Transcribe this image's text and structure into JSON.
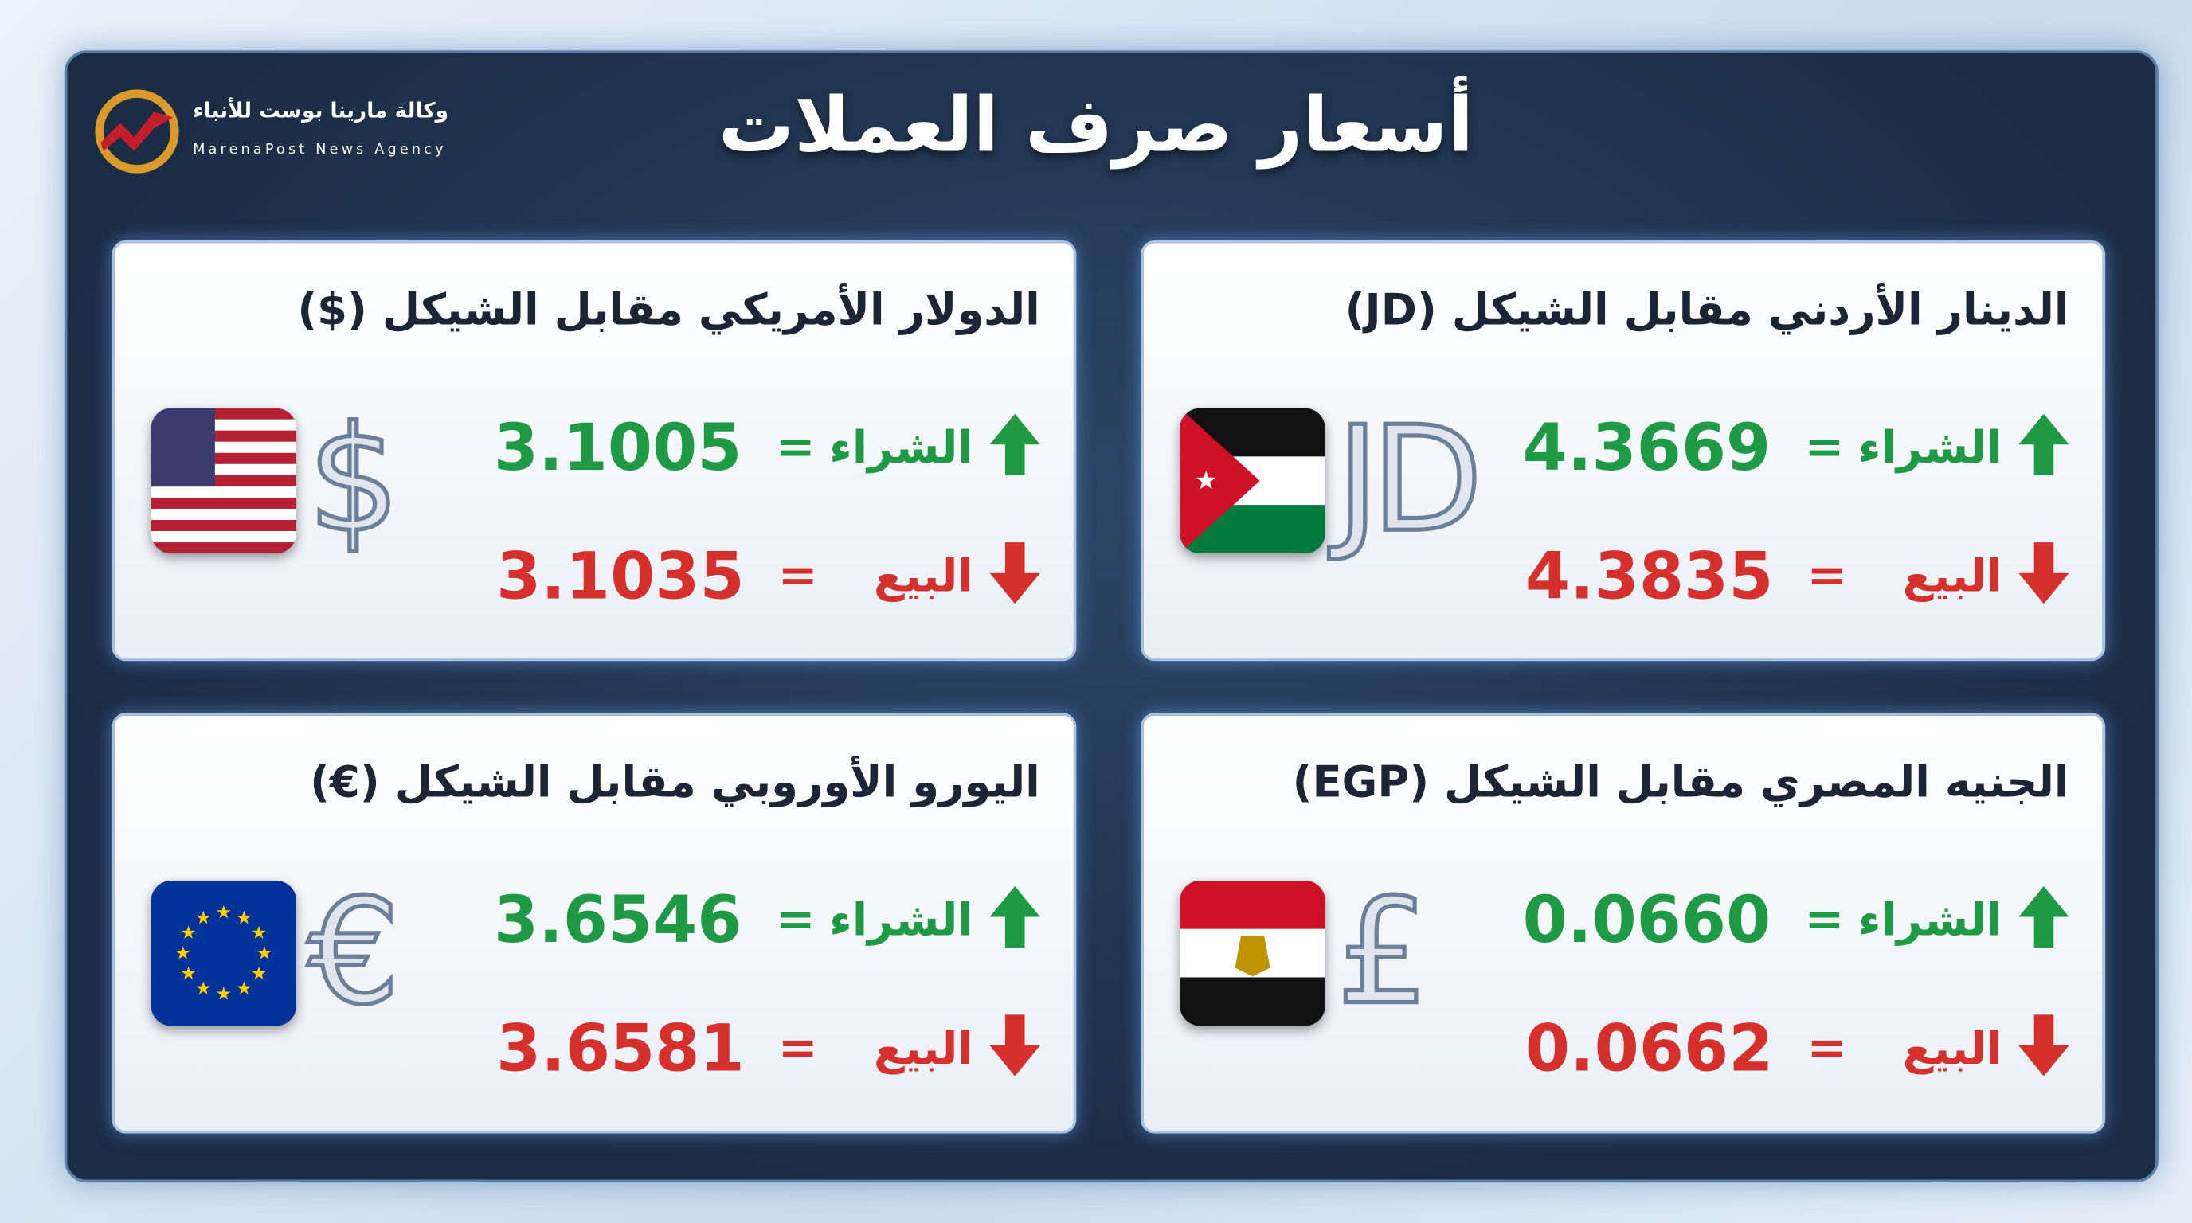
{
  "header": {
    "title": "أسعار صرف العملات"
  },
  "logo": {
    "name_ar": "وكالة مارينا بوست للأنباء",
    "name_en": "MarenaPost News Agency"
  },
  "cards": [
    {
      "title": "الدينار الأردني مقابل الشيكل (JD)",
      "symbol": "JD",
      "buy": {
        "label": "الشراء",
        "equals": "=",
        "value": "4.3669"
      },
      "sell": {
        "label": "البيع",
        "equals": "=",
        "value": "4.3835"
      }
    },
    {
      "title": "الدولار الأمريكي مقابل الشيكل ($)",
      "symbol": "$",
      "buy": {
        "label": "الشراء",
        "equals": "=",
        "value": "3.1005"
      },
      "sell": {
        "label": "البيع",
        "equals": "=",
        "value": "3.1035"
      }
    },
    {
      "title": "الجنيه المصري مقابل الشيكل (EGP)",
      "symbol": "£",
      "buy": {
        "label": "الشراء",
        "equals": "=",
        "value": "0.0660"
      },
      "sell": {
        "label": "البيع",
        "equals": "=",
        "value": "0.0662"
      }
    },
    {
      "title": "اليورو الأوروبي مقابل الشيكل (€)",
      "symbol": "€",
      "buy": {
        "label": "الشراء",
        "equals": "=",
        "value": "3.6546"
      },
      "sell": {
        "label": "البيع",
        "equals": "=",
        "value": "3.6581"
      }
    }
  ]
}
